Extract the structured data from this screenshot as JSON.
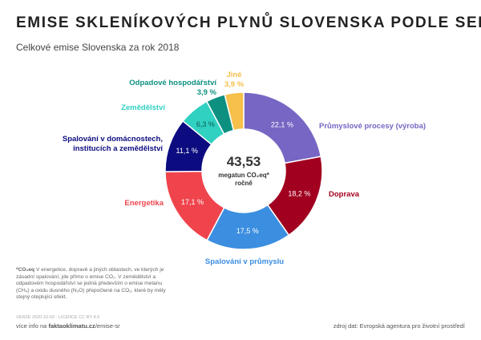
{
  "chart_data": {
    "type": "donut",
    "title": "EMISE SKLENÍKOVÝCH PLYNŮ SLOVENSKA PODLE SEKTORŮ",
    "subtitle": "Celkové emise Slovenska za rok 2018",
    "center_value": "43,53",
    "center_unit": "megatun CO₂eq*",
    "center_period": "ročně",
    "categories": [
      "Průmyslové procesy (výroba)",
      "Doprava",
      "Spalování v průmyslu",
      "Energetika",
      "Spalování v domácnostech, institucích a zemědělství",
      "Zemědělství",
      "Odpadové hospodářství",
      "Jiné"
    ],
    "values": [
      22.1,
      18.2,
      17.5,
      17.1,
      11.1,
      6.3,
      3.9,
      3.9
    ],
    "value_labels": [
      "22,1 %",
      "18,2 %",
      "17,5 %",
      "17,1 %",
      "11,1 %",
      "6,3 %",
      "3,9 %",
      "3,9 %"
    ],
    "colors": [
      "#7766c4",
      "#a1001f",
      "#3b8ee0",
      "#f0444d",
      "#0c0c80",
      "#30d1c1",
      "#0e9081",
      "#f6c04b"
    ],
    "footnote_term": "*CO₂eq",
    "footnote": "V energetice, dopravě a jiných oblastech, ve kterých je zásadní spalování, jde přímo o emise CO₂. V zemědělství a odpadovém hospodářství se jedná především o emise metanu (CH₄) a oxidu dusného (N₂O) přepočtené na CO₂, které by měly stejný oteplující efekt.",
    "version": "VERZE 2020-10-03 · LICENCE CC BY 4.0",
    "more_info_prefix": "více info na",
    "more_info_site": "faktaoklimatu.cz",
    "more_info_path": "/emise-sr",
    "source": "zdroj dat: Evropská agentura pro životní prostředí"
  }
}
